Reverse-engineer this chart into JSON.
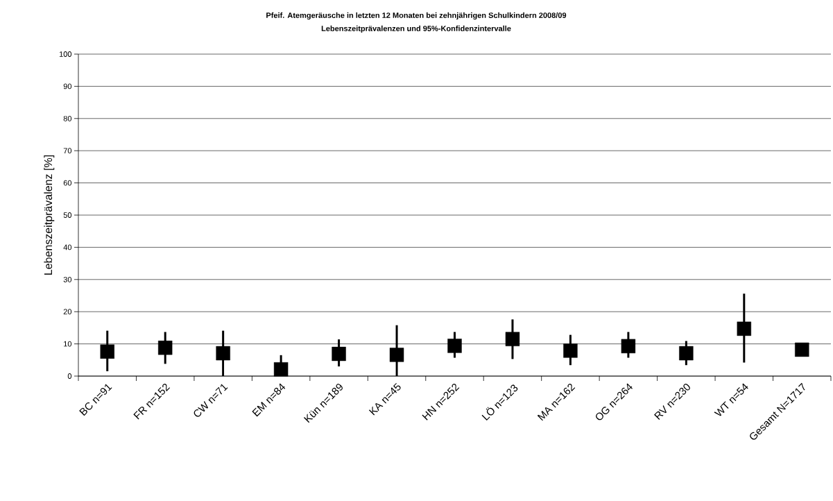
{
  "chart_data": {
    "type": "scatter",
    "title": "Pfeif. Atemgeräusche in letzten 12 Monaten bei zehnjährigen Schulkindern  2008/09",
    "subtitle": "Lebenszeitprävalenzen und 95%-Konfidenzintervalle",
    "ylabel": "Lebenszeitprävalenz [%]",
    "categories": [
      "BC n=91",
      "FR n=152",
      "CW n=71",
      "EM n=84",
      "Kün n=189",
      "KA n=45",
      "HN n=252",
      "LÖ n=123",
      "MA n=162",
      "OG n=264",
      "RV n=230",
      "WT n=54",
      "Gesamt N=1717"
    ],
    "values": [
      7.6,
      8.8,
      7.1,
      2.1,
      6.9,
      6.6,
      9.4,
      11.5,
      7.9,
      9.3,
      7.1,
      14.7,
      8.2
    ],
    "errors": [
      [
        1.5,
        14.1
      ],
      [
        3.8,
        13.7
      ],
      [
        0,
        14.1
      ],
      [
        0,
        6.5
      ],
      [
        3.0,
        11.4
      ],
      [
        0,
        15.8
      ],
      [
        5.7,
        13.7
      ],
      [
        5.3,
        17.6
      ],
      [
        3.4,
        12.8
      ],
      [
        5.7,
        13.7
      ],
      [
        3.4,
        10.9
      ],
      [
        4.2,
        25.6
      ],
      null
    ],
    "color": "#000000",
    "marker": "square",
    "grid": "y",
    "ylim": [
      0,
      100
    ],
    "yticks": [
      0,
      10,
      20,
      30,
      40,
      50,
      60,
      70,
      80,
      90,
      100
    ]
  }
}
